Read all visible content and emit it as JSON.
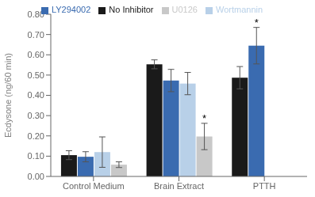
{
  "chart_data": {
    "type": "bar",
    "categories": [
      "Control Medium",
      "Brain Extract",
      "PTTH"
    ],
    "series": [
      {
        "name": "No Inhibitor",
        "color": "#1a1a1a",
        "values": [
          0.105,
          0.553,
          0.487
        ],
        "errors": [
          0.022,
          0.022,
          0.055
        ]
      },
      {
        "name": "LY294002",
        "color": "#3a6bb0",
        "values": [
          0.097,
          0.473,
          0.645
        ],
        "errors": [
          0.025,
          0.055,
          0.09
        ]
      },
      {
        "name": "Wortmannin",
        "color": "#b8d0e8",
        "values": [
          0.12,
          0.458,
          null
        ],
        "errors": [
          0.075,
          0.055,
          null
        ]
      },
      {
        "name": "U0126",
        "color": "#c8c8c8",
        "values": [
          0.058,
          0.197,
          null
        ],
        "errors": [
          0.014,
          0.065,
          null
        ]
      }
    ],
    "y_label": "Ecdysone (ng/60 min)",
    "ylim": [
      0.0,
      0.8
    ],
    "yticks": [
      {
        "value": 0.0,
        "label": "0.00"
      },
      {
        "value": 0.1,
        "label": "0.10"
      },
      {
        "value": 0.2,
        "label": "0.20"
      },
      {
        "value": 0.3,
        "label": "0.30"
      },
      {
        "value": 0.4,
        "label": "0.40"
      },
      {
        "value": 0.5,
        "label": "0.50"
      },
      {
        "value": 0.6,
        "label": "0.60"
      },
      {
        "value": 0.7,
        "label": "0.70"
      },
      {
        "value": 0.8,
        "label": "0.80"
      }
    ],
    "annotations": [
      {
        "text": "*",
        "category": "Brain Extract",
        "series": "U0126"
      },
      {
        "text": "*",
        "category": "PTTH",
        "series": "LY294002"
      }
    ],
    "grid": false,
    "legend": "top"
  }
}
